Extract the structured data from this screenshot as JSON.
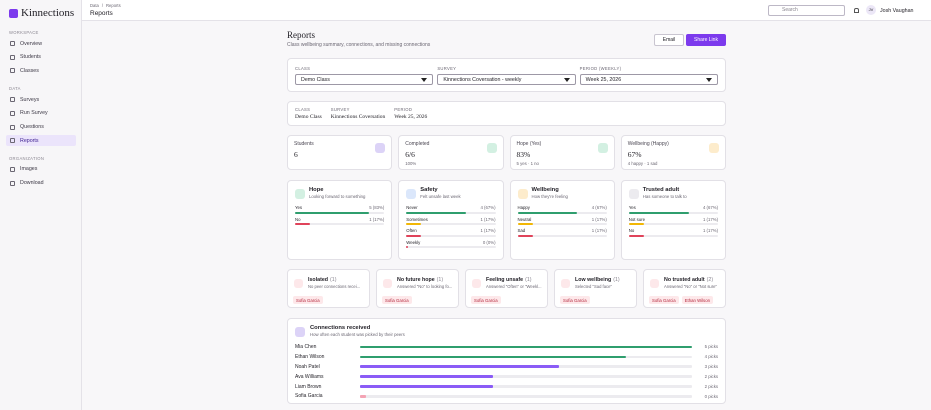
{
  "sidebar": {
    "logo": "Kinnections",
    "sections": [
      {
        "heading": "WORKSPACE",
        "items": [
          "Overview",
          "Students",
          "Classes"
        ]
      },
      {
        "heading": "DATA",
        "items": [
          "Surveys",
          "Run Survey",
          "Questions",
          "Reports"
        ]
      },
      {
        "heading": "ORGANIZATION",
        "items": [
          "Images",
          "Download"
        ]
      }
    ]
  },
  "topbar": {
    "breadcrumb": [
      "Data",
      "Reports"
    ],
    "breadcrumb_separator": "/",
    "title": "Reports",
    "search_placeholder": "Search",
    "user_initials": "JV",
    "user_name": "Josh Vaughan"
  },
  "header": {
    "title": "Reports",
    "subtitle": "Class wellbeing summary, connections, and missing connections",
    "buttons": [
      "Email",
      "Share Link"
    ]
  },
  "filters": [
    {
      "label": "CLASS",
      "value": "Demo Class"
    },
    {
      "label": "SURVEY",
      "value": "Kinnections Coversation - weekly"
    },
    {
      "label": "PERIOD (WEEKLY)",
      "value": "Week 25, 2026"
    }
  ],
  "summary": [
    {
      "label": "CLASS",
      "value": "Demo Class"
    },
    {
      "label": "SURVEY",
      "value": "Kinnections Coversation"
    },
    {
      "label": "PERIOD",
      "value": "Week 25, 2026"
    }
  ],
  "stats": [
    {
      "label": "Students",
      "value": "6",
      "icon_color": "#dcd3f7"
    },
    {
      "label": "Completed",
      "value": "6/6",
      "note": "100%",
      "icon_color": "#d3f0e2"
    },
    {
      "label": "Hope (Yes)",
      "value": "83%",
      "note": "5 yes · 1 no",
      "icon_color": "#d3f0e2"
    },
    {
      "label": "Wellbeing (Happy)",
      "value": "67%",
      "note": "4 happy · 1 sad",
      "icon_color": "#fdeccc"
    }
  ],
  "questions": [
    {
      "title": "Hope",
      "subtitle": "Looking forward to something",
      "icon_color": "#d3f0e2",
      "options": [
        {
          "label": "Yes",
          "percent": 83,
          "value_label": "5 (83%)",
          "color": "#2f9e6e"
        },
        {
          "label": "No",
          "percent": 17,
          "value_label": "1 (17%)",
          "color": "#e0435a"
        }
      ]
    },
    {
      "title": "Safety",
      "subtitle": "Felt unsafe last week",
      "icon_color": "#dbe7fb",
      "options": [
        {
          "label": "Never",
          "percent": 67,
          "value_label": "4 (67%)",
          "color": "#2f9e6e"
        },
        {
          "label": "Sometimes",
          "percent": 17,
          "value_label": "1 (17%)",
          "color": "#f2b705"
        },
        {
          "label": "Often",
          "percent": 17,
          "value_label": "1 (17%)",
          "color": "#e0435a"
        },
        {
          "label": "Weekly",
          "percent": 0,
          "value_label": "0 (0%)",
          "color": "#e0435a"
        }
      ]
    },
    {
      "title": "Wellbeing",
      "subtitle": "How they're feeling",
      "icon_color": "#fdeccc",
      "options": [
        {
          "label": "Happy",
          "percent": 67,
          "value_label": "4 (67%)",
          "color": "#2f9e6e"
        },
        {
          "label": "Neutral",
          "percent": 17,
          "value_label": "1 (17%)",
          "color": "#f2b705"
        },
        {
          "label": "Sad",
          "percent": 17,
          "value_label": "1 (17%)",
          "color": "#e0435a"
        }
      ]
    },
    {
      "title": "Trusted adult",
      "subtitle": "Has someone to talk to",
      "icon_color": "#ecebef",
      "options": [
        {
          "label": "Yes",
          "percent": 67,
          "value_label": "4 (67%)",
          "color": "#2f9e6e"
        },
        {
          "label": "Not sure",
          "percent": 17,
          "value_label": "1 (17%)",
          "color": "#f2b705"
        },
        {
          "label": "No",
          "percent": 17,
          "value_label": "1 (17%)",
          "color": "#e0435a"
        }
      ]
    }
  ],
  "alerts": [
    {
      "title": "Isolated",
      "count": "(1)",
      "subtitle": "No peer connections recei...",
      "students": [
        "Sofia Garcia"
      ]
    },
    {
      "title": "No future hope",
      "count": "(1)",
      "subtitle": "Answered \"No\" to looking fo...",
      "students": [
        "Sofia Garcia"
      ]
    },
    {
      "title": "Feeling unsafe",
      "count": "(1)",
      "subtitle": "Answered \"Often\" or \"Weekl...",
      "students": [
        "Sofia Garcia"
      ]
    },
    {
      "title": "Low wellbeing",
      "count": "(1)",
      "subtitle": "Selected \"Sad face\"",
      "students": [
        "Sofia Garcia"
      ]
    },
    {
      "title": "No trusted adult",
      "count": "(2)",
      "subtitle": "Answered \"No\" or \"Not sure\"",
      "students": [
        "Sofia Garcia",
        "Ethan Wilson"
      ]
    }
  ],
  "connections": {
    "title": "Connections received",
    "subtitle": "How often each student was picked by their peers",
    "rows": [
      {
        "name": "Mia Chen",
        "picks": 5,
        "value_label": "5 picks",
        "color": "#2f9e6e"
      },
      {
        "name": "Ethan Wilson",
        "picks": 4,
        "value_label": "4 picks",
        "color": "#2f9e6e"
      },
      {
        "name": "Noah Patel",
        "picks": 3,
        "value_label": "3 picks",
        "color": "#8b5cf6"
      },
      {
        "name": "Ava Williams",
        "picks": 2,
        "value_label": "2 picks",
        "color": "#8b5cf6"
      },
      {
        "name": "Liam Brown",
        "picks": 2,
        "value_label": "2 picks",
        "color": "#8b5cf6"
      },
      {
        "name": "Sofia Garcia",
        "picks": 0,
        "value_label": "0 picks",
        "color": "#f4a3b4"
      }
    ]
  }
}
